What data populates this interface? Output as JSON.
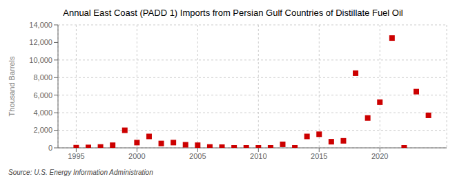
{
  "chart_data": {
    "type": "scatter",
    "title": "Annual East Coast (PADD 1) Imports from Persian Gulf Countries of Distillate Fuel Oil",
    "y_label": "Thousand Barrels",
    "annotations": [
      "Source: U.S. Energy Information Administration"
    ],
    "x": [
      1995,
      1996,
      1997,
      1998,
      1999,
      2000,
      2001,
      2002,
      2003,
      2004,
      2005,
      2006,
      2007,
      2008,
      2009,
      2010,
      2011,
      2012,
      2013,
      2014,
      2015,
      2016,
      2017,
      2018,
      2019,
      2020,
      2021,
      2022,
      2023,
      2024
    ],
    "values": [
      20,
      50,
      100,
      300,
      2000,
      600,
      1300,
      500,
      600,
      350,
      300,
      100,
      80,
      0,
      0,
      0,
      0,
      400,
      0,
      1300,
      1550,
      700,
      800,
      8500,
      3400,
      5200,
      12500,
      0,
      6400,
      3700
    ],
    "color": "#cc0000",
    "marker": "square",
    "xlim": [
      1993.5,
      2025.5
    ],
    "xticks": [
      1995,
      2000,
      2005,
      2010,
      2015,
      2020
    ],
    "ylim": [
      0,
      14000
    ],
    "yticks": [
      0,
      {
        "value": 2000,
        "label": "2,000"
      },
      {
        "value": 4000,
        "label": "4,000"
      },
      {
        "value": 6000,
        "label": "6,000"
      },
      {
        "value": 8000,
        "label": "8,000"
      },
      {
        "value": 10000,
        "label": "10,000"
      },
      {
        "value": 12000,
        "label": "12,000"
      },
      {
        "value": 14000,
        "label": "14,000"
      }
    ],
    "grid": true
  }
}
